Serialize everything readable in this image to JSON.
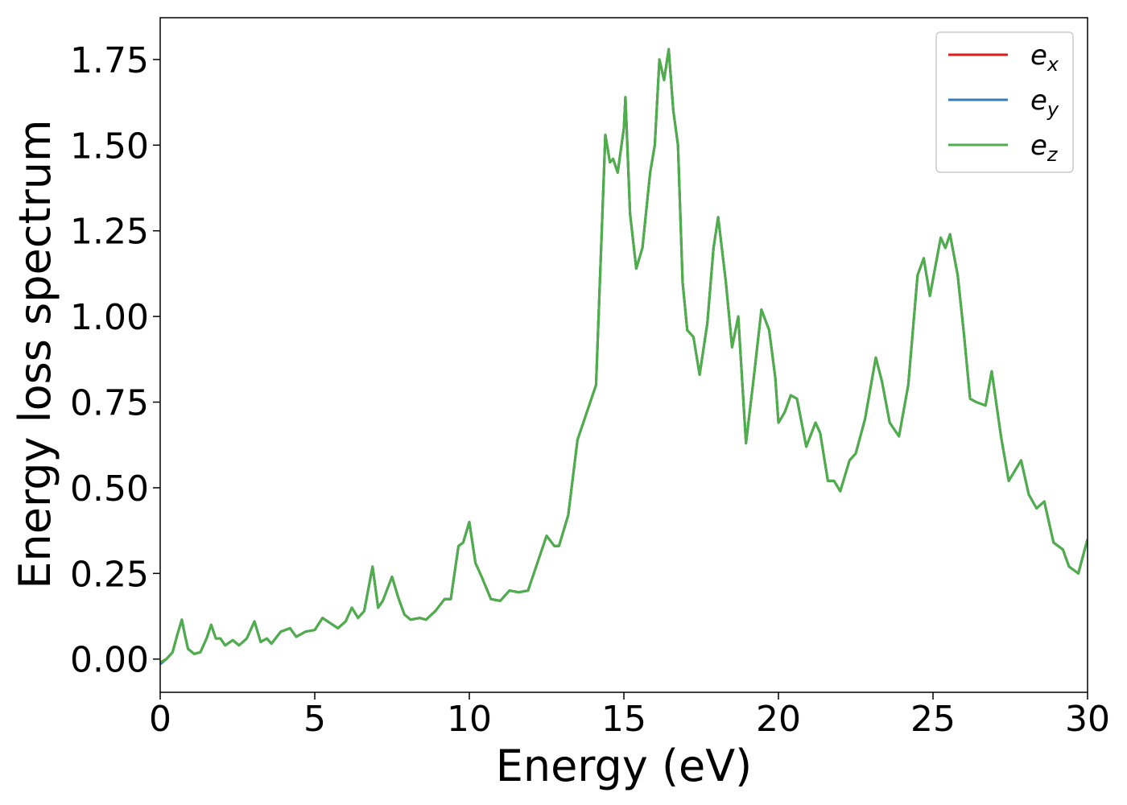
{
  "chart_data": {
    "type": "line",
    "xlabel": "Energy (eV)",
    "ylabel": "Energy loss spectrum",
    "xlim": [
      0,
      30
    ],
    "xticks": [
      0,
      5,
      10,
      15,
      20,
      25,
      30
    ],
    "ylim": [
      -0.097,
      1.872
    ],
    "yticks": [
      {
        "value": 0,
        "label": "0.00"
      },
      {
        "value": 0.25,
        "label": "0.25"
      },
      {
        "value": 0.5,
        "label": "0.50"
      },
      {
        "value": 0.75,
        "label": "0.75"
      },
      {
        "value": 1.0,
        "label": "1.00"
      },
      {
        "value": 1.25,
        "label": "1.25"
      },
      {
        "value": 1.5,
        "label": "1.50"
      },
      {
        "value": 1.75,
        "label": "1.75"
      }
    ],
    "legend": "upper right",
    "x": [
      0,
      0.2,
      0.4,
      0.55,
      0.7,
      0.8,
      0.9,
      1.1,
      1.3,
      1.5,
      1.65,
      1.8,
      1.95,
      2.1,
      2.35,
      2.55,
      2.8,
      3.05,
      3.25,
      3.45,
      3.6,
      3.9,
      4.2,
      4.4,
      4.7,
      5.0,
      5.25,
      5.5,
      5.75,
      6.0,
      6.2,
      6.4,
      6.6,
      6.87,
      7.05,
      7.2,
      7.5,
      7.7,
      7.9,
      8.1,
      8.4,
      8.6,
      8.9,
      9.2,
      9.4,
      9.65,
      9.8,
      10.0,
      10.2,
      10.4,
      10.7,
      11.0,
      11.3,
      11.6,
      11.9,
      12.2,
      12.5,
      12.75,
      12.9,
      13.2,
      13.5,
      13.8,
      14.1,
      14.4,
      14.55,
      14.65,
      14.8,
      15.0,
      15.05,
      15.2,
      15.4,
      15.6,
      15.85,
      16.0,
      16.15,
      16.3,
      16.45,
      16.6,
      16.75,
      16.9,
      17.05,
      17.25,
      17.45,
      17.7,
      17.9,
      18.05,
      18.3,
      18.5,
      18.7,
      18.95,
      19.2,
      19.45,
      19.7,
      19.9,
      20.0,
      20.2,
      20.4,
      20.6,
      20.9,
      21.2,
      21.35,
      21.6,
      21.8,
      22.0,
      22.3,
      22.5,
      22.8,
      23.15,
      23.35,
      23.6,
      23.9,
      24.2,
      24.5,
      24.7,
      24.9,
      25.25,
      25.4,
      25.55,
      25.8,
      26.0,
      26.2,
      26.4,
      26.7,
      26.9,
      27.2,
      27.45,
      27.85,
      28.1,
      28.35,
      28.6,
      28.9,
      29.2,
      29.4,
      29.7,
      30.0
    ],
    "series": [
      {
        "name": "e",
        "subscript": "x",
        "color": "#e41a1c",
        "values": [
          -0.01,
          0.0,
          0.02,
          0.07,
          0.115,
          0.07,
          0.03,
          0.015,
          0.02,
          0.06,
          0.1,
          0.06,
          0.06,
          0.04,
          0.055,
          0.04,
          0.06,
          0.11,
          0.05,
          0.06,
          0.045,
          0.08,
          0.09,
          0.065,
          0.08,
          0.085,
          0.12,
          0.105,
          0.09,
          0.11,
          0.15,
          0.12,
          0.14,
          0.27,
          0.15,
          0.17,
          0.24,
          0.18,
          0.13,
          0.115,
          0.12,
          0.115,
          0.14,
          0.175,
          0.175,
          0.33,
          0.34,
          0.4,
          0.28,
          0.24,
          0.175,
          0.17,
          0.2,
          0.195,
          0.2,
          0.28,
          0.36,
          0.33,
          0.33,
          0.42,
          0.64,
          0.72,
          0.8,
          1.53,
          1.45,
          1.46,
          1.42,
          1.55,
          1.64,
          1.3,
          1.14,
          1.2,
          1.42,
          1.5,
          1.75,
          1.69,
          1.78,
          1.6,
          1.5,
          1.1,
          0.96,
          0.94,
          0.83,
          0.98,
          1.2,
          1.29,
          1.1,
          0.91,
          1.0,
          0.63,
          0.82,
          1.02,
          0.96,
          0.82,
          0.69,
          0.72,
          0.77,
          0.76,
          0.62,
          0.69,
          0.66,
          0.52,
          0.52,
          0.49,
          0.58,
          0.6,
          0.7,
          0.88,
          0.81,
          0.69,
          0.65,
          0.8,
          1.12,
          1.17,
          1.06,
          1.23,
          1.2,
          1.24,
          1.12,
          0.95,
          0.76,
          0.75,
          0.74,
          0.84,
          0.65,
          0.52,
          0.58,
          0.48,
          0.44,
          0.46,
          0.34,
          0.32,
          0.27,
          0.25,
          0.35
        ]
      },
      {
        "name": "e",
        "subscript": "y",
        "color": "#377eb8",
        "values": [
          -0.015,
          0.0,
          0.02,
          0.07,
          0.115,
          0.07,
          0.03,
          0.015,
          0.02,
          0.06,
          0.1,
          0.06,
          0.06,
          0.04,
          0.055,
          0.04,
          0.06,
          0.11,
          0.05,
          0.06,
          0.045,
          0.08,
          0.09,
          0.065,
          0.08,
          0.085,
          0.12,
          0.105,
          0.09,
          0.11,
          0.15,
          0.12,
          0.14,
          0.27,
          0.15,
          0.17,
          0.24,
          0.18,
          0.13,
          0.115,
          0.12,
          0.115,
          0.14,
          0.175,
          0.175,
          0.33,
          0.34,
          0.4,
          0.28,
          0.24,
          0.175,
          0.17,
          0.2,
          0.195,
          0.2,
          0.28,
          0.36,
          0.33,
          0.33,
          0.42,
          0.64,
          0.72,
          0.8,
          1.53,
          1.45,
          1.46,
          1.42,
          1.55,
          1.64,
          1.3,
          1.14,
          1.2,
          1.42,
          1.5,
          1.75,
          1.69,
          1.78,
          1.6,
          1.5,
          1.1,
          0.96,
          0.94,
          0.83,
          0.98,
          1.2,
          1.29,
          1.1,
          0.91,
          1.0,
          0.63,
          0.82,
          1.02,
          0.96,
          0.82,
          0.69,
          0.72,
          0.77,
          0.76,
          0.62,
          0.69,
          0.66,
          0.52,
          0.52,
          0.49,
          0.58,
          0.6,
          0.7,
          0.88,
          0.81,
          0.69,
          0.65,
          0.8,
          1.12,
          1.17,
          1.06,
          1.23,
          1.2,
          1.24,
          1.12,
          0.95,
          0.76,
          0.75,
          0.74,
          0.84,
          0.65,
          0.52,
          0.58,
          0.48,
          0.44,
          0.46,
          0.34,
          0.32,
          0.27,
          0.25,
          0.35
        ]
      },
      {
        "name": "e",
        "subscript": "z",
        "color": "#4daf4a",
        "values": [
          -0.01,
          0.0,
          0.02,
          0.07,
          0.115,
          0.07,
          0.03,
          0.015,
          0.02,
          0.06,
          0.1,
          0.06,
          0.06,
          0.04,
          0.055,
          0.04,
          0.06,
          0.11,
          0.05,
          0.06,
          0.045,
          0.08,
          0.09,
          0.065,
          0.08,
          0.085,
          0.12,
          0.105,
          0.09,
          0.11,
          0.15,
          0.12,
          0.14,
          0.27,
          0.15,
          0.17,
          0.24,
          0.18,
          0.13,
          0.115,
          0.12,
          0.115,
          0.14,
          0.175,
          0.175,
          0.33,
          0.34,
          0.4,
          0.28,
          0.24,
          0.175,
          0.17,
          0.2,
          0.195,
          0.2,
          0.28,
          0.36,
          0.33,
          0.33,
          0.42,
          0.64,
          0.72,
          0.8,
          1.53,
          1.45,
          1.46,
          1.42,
          1.55,
          1.64,
          1.3,
          1.14,
          1.2,
          1.42,
          1.5,
          1.75,
          1.69,
          1.78,
          1.6,
          1.5,
          1.1,
          0.96,
          0.94,
          0.83,
          0.98,
          1.2,
          1.29,
          1.1,
          0.91,
          1.0,
          0.63,
          0.82,
          1.02,
          0.96,
          0.82,
          0.69,
          0.72,
          0.77,
          0.76,
          0.62,
          0.69,
          0.66,
          0.52,
          0.52,
          0.49,
          0.58,
          0.6,
          0.7,
          0.88,
          0.81,
          0.69,
          0.65,
          0.8,
          1.12,
          1.17,
          1.06,
          1.23,
          1.2,
          1.24,
          1.12,
          0.95,
          0.76,
          0.75,
          0.74,
          0.84,
          0.65,
          0.52,
          0.58,
          0.48,
          0.44,
          0.46,
          0.34,
          0.32,
          0.27,
          0.25,
          0.35
        ]
      }
    ]
  }
}
